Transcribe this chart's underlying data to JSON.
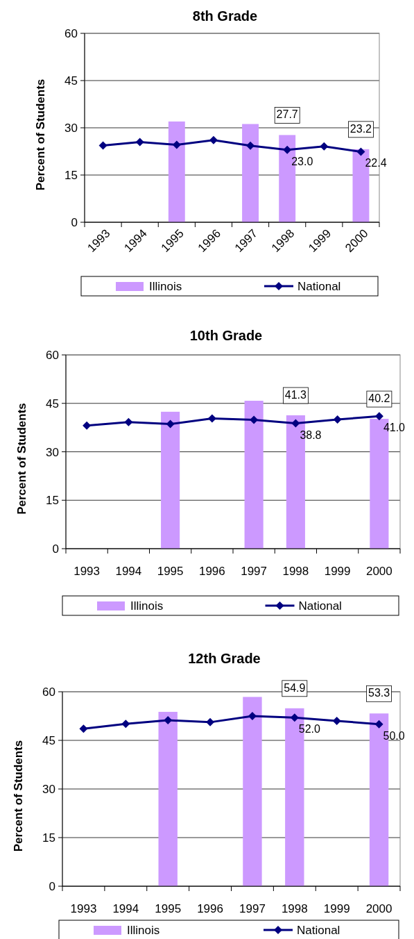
{
  "chart_data": [
    {
      "type": "bar",
      "title": "8th Grade",
      "ylabel": "Percent of Students",
      "categories": [
        "1993",
        "1994",
        "1995",
        "1996",
        "1997",
        "1998",
        "1999",
        "2000"
      ],
      "ylim": [
        0,
        60
      ],
      "yticks": [
        0,
        15,
        30,
        45,
        60
      ],
      "grid": "y",
      "legend": "bottom",
      "series": [
        {
          "name": "Illinois",
          "color": "#cc99ff",
          "values": [
            null,
            null,
            32.0,
            null,
            31.2,
            27.7,
            null,
            23.2
          ],
          "value_labels": [
            null,
            null,
            null,
            null,
            null,
            "27.7",
            null,
            "23.2"
          ]
        },
        {
          "name": "National",
          "type": "line",
          "color": "#000080",
          "marker": "diamond",
          "values": [
            24.4,
            25.5,
            24.6,
            26.1,
            24.3,
            23.0,
            24.1,
            22.4
          ],
          "value_labels": [
            null,
            null,
            null,
            null,
            null,
            "23.0",
            null,
            "22.4"
          ]
        }
      ]
    },
    {
      "type": "bar",
      "title": "10th Grade",
      "ylabel": "Percent of Students",
      "categories": [
        "1993",
        "1994",
        "1995",
        "1996",
        "1997",
        "1998",
        "1999",
        "2000"
      ],
      "ylim": [
        0,
        60
      ],
      "yticks": [
        0,
        15,
        30,
        45,
        60
      ],
      "grid": "y",
      "legend": "bottom",
      "series": [
        {
          "name": "Illinois",
          "color": "#cc99ff",
          "values": [
            null,
            null,
            42.4,
            null,
            45.8,
            41.3,
            null,
            40.2
          ],
          "value_labels": [
            null,
            null,
            null,
            null,
            null,
            "41.3",
            null,
            "40.2"
          ]
        },
        {
          "name": "National",
          "type": "line",
          "color": "#000080",
          "marker": "diamond",
          "values": [
            38.1,
            39.2,
            38.6,
            40.3,
            39.9,
            38.8,
            40.0,
            41.0
          ],
          "value_labels": [
            null,
            null,
            null,
            null,
            null,
            "38.8",
            null,
            "41.0"
          ]
        }
      ]
    },
    {
      "type": "bar",
      "title": "12th Grade",
      "ylabel": "Percent of Students",
      "categories": [
        "1993",
        "1994",
        "1995",
        "1996",
        "1997",
        "1998",
        "1999",
        "2000"
      ],
      "ylim": [
        0,
        60
      ],
      "yticks": [
        0,
        15,
        30,
        45,
        60
      ],
      "grid": "y",
      "legend": "bottom",
      "series": [
        {
          "name": "Illinois",
          "color": "#cc99ff",
          "values": [
            null,
            null,
            53.8,
            null,
            58.4,
            54.9,
            null,
            53.3
          ],
          "value_labels": [
            null,
            null,
            null,
            null,
            null,
            "54.9",
            null,
            "53.3"
          ]
        },
        {
          "name": "National",
          "type": "line",
          "color": "#000080",
          "marker": "diamond",
          "values": [
            48.6,
            50.1,
            51.2,
            50.6,
            52.5,
            52.0,
            51.0,
            50.0
          ],
          "value_labels": [
            null,
            null,
            null,
            null,
            null,
            "52.0",
            null,
            "50.0"
          ]
        }
      ]
    }
  ]
}
